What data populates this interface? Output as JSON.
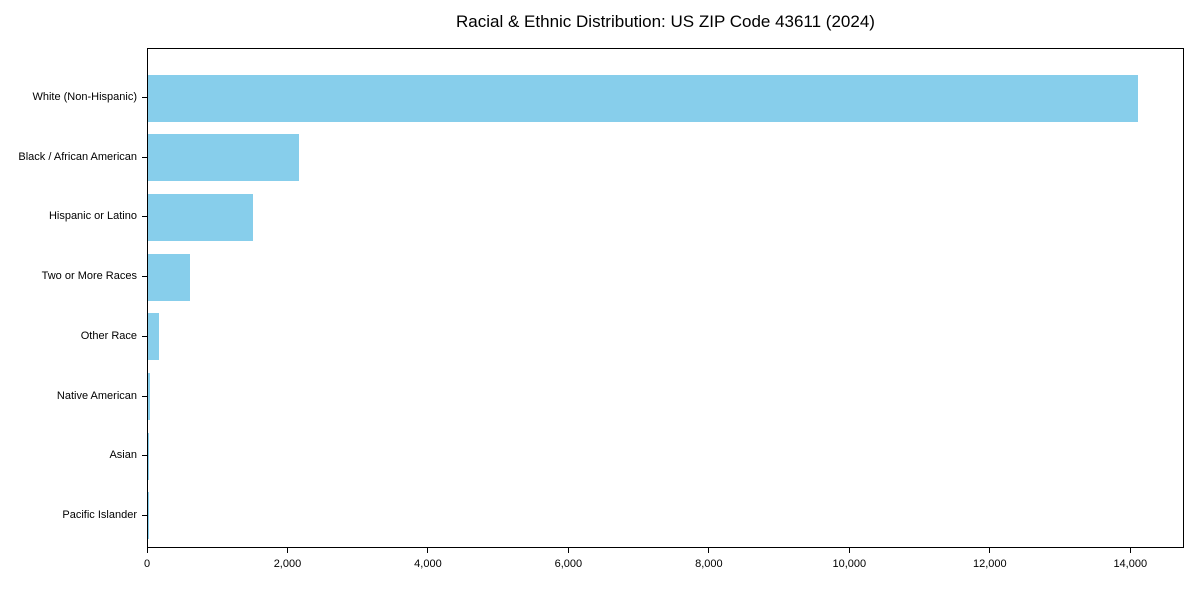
{
  "chart_data": {
    "type": "bar",
    "orientation": "horizontal",
    "title": "Racial & Ethnic Distribution: US ZIP Code 43611 (2024)",
    "categories": [
      "White (Non-Hispanic)",
      "Black / African American",
      "Hispanic or Latino",
      "Two or More Races",
      "Other Race",
      "Native American",
      "Asian",
      "Pacific Islander"
    ],
    "values": [
      14100,
      2150,
      1490,
      600,
      160,
      35,
      10,
      5
    ],
    "xlabel": "",
    "ylabel": "",
    "xlim": [
      0,
      14765
    ],
    "xticks": [
      0,
      2000,
      4000,
      6000,
      8000,
      10000,
      12000,
      14000
    ],
    "xtick_labels": [
      "0",
      "2,000",
      "4,000",
      "6,000",
      "8,000",
      "10,000",
      "12,000",
      "14,000"
    ],
    "bar_color": "#87CEEB",
    "text_color": "#000000",
    "grid": false,
    "legend": null
  }
}
